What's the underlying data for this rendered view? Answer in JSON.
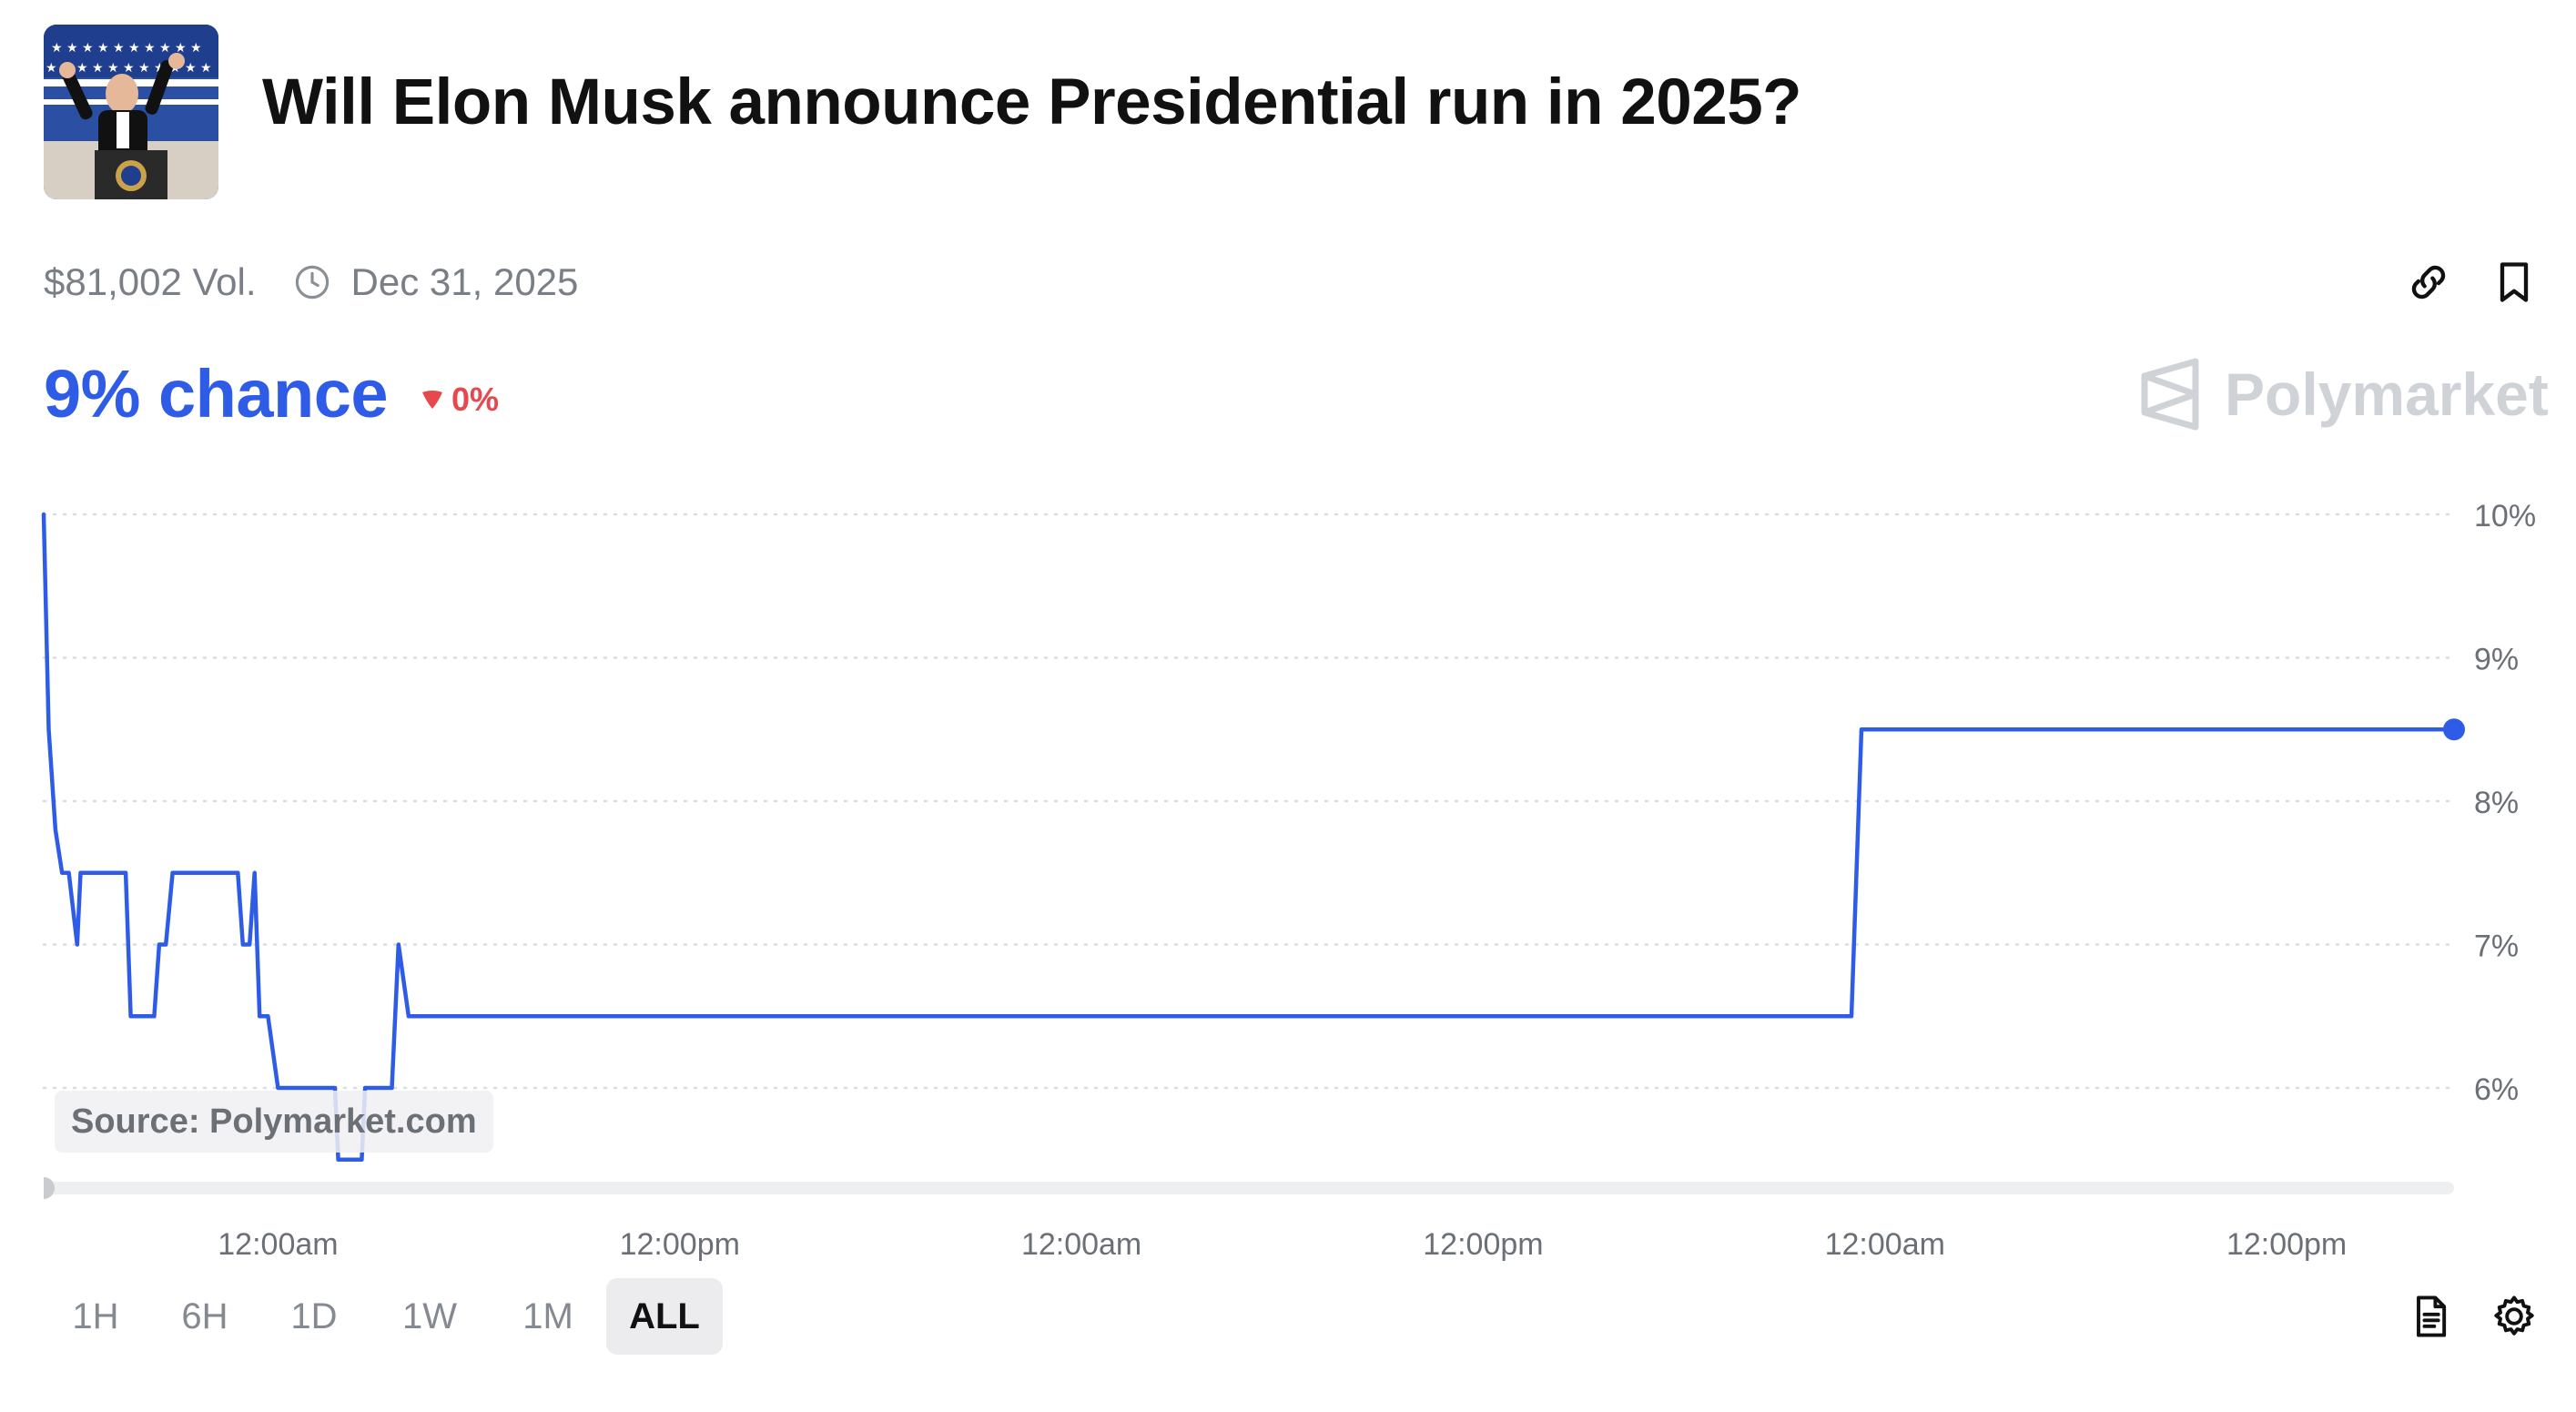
{
  "market": {
    "title": "Will Elon Musk announce Presidential run in 2025?",
    "volume": "$81,002 Vol.",
    "end_date": "Dec 31, 2025",
    "chance": "9% chance",
    "delta": "0%",
    "brand": "Polymarket",
    "source": "Source: Polymarket.com"
  },
  "timeframes": [
    {
      "label": "1H",
      "active": false
    },
    {
      "label": "6H",
      "active": false
    },
    {
      "label": "1D",
      "active": false
    },
    {
      "label": "1W",
      "active": false
    },
    {
      "label": "1M",
      "active": false
    },
    {
      "label": "ALL",
      "active": true
    }
  ],
  "colors": {
    "accent": "#2e5ce6",
    "down": "#e5484d",
    "muted": "#858a92",
    "brand_mark": "#cfd3d8"
  },
  "icons": [
    "link-icon",
    "bookmark-icon",
    "clock-icon",
    "down-triangle-icon",
    "document-icon",
    "gear-icon",
    "polymarket-logo-icon"
  ],
  "chart_data": {
    "type": "line",
    "title": "",
    "xlabel": "",
    "ylabel": "",
    "ylim": [
      5.5,
      10
    ],
    "y_ticks": [
      "10%",
      "9%",
      "8%",
      "7%",
      "6%"
    ],
    "y_tick_values": [
      10,
      9,
      8,
      7,
      6
    ],
    "x_tick_labels": [
      "12:00am",
      "12:00pm",
      "12:00am",
      "12:00pm",
      "12:00am",
      "12:00pm"
    ],
    "x_tick_hours": [
      12,
      24,
      36,
      48,
      60,
      72
    ],
    "x_range_hours": [
      5,
      77
    ],
    "grid": true,
    "series": [
      {
        "x": [
          5.0,
          5.15,
          5.35,
          5.55,
          5.75,
          6.0,
          6.1,
          6.25,
          6.35,
          7.45,
          7.6,
          8.3,
          8.45,
          8.65,
          8.85,
          9.45,
          9.7,
          10.8,
          10.95,
          11.15,
          11.3,
          11.45,
          11.7,
          12.0,
          12.1,
          13.7,
          13.8,
          14.5,
          14.6,
          15.4,
          15.6,
          15.9,
          16.1,
          59.0,
          59.3,
          77.0
        ],
        "y": [
          10.0,
          8.5,
          7.8,
          7.5,
          7.5,
          7.0,
          7.5,
          7.5,
          7.5,
          7.5,
          6.5,
          6.5,
          7.0,
          7.0,
          7.5,
          7.5,
          7.5,
          7.5,
          7.0,
          7.0,
          7.5,
          6.5,
          6.5,
          6.0,
          6.0,
          6.0,
          5.5,
          5.5,
          6.0,
          6.0,
          7.0,
          6.5,
          6.5,
          6.5,
          8.5,
          8.5
        ]
      }
    ]
  }
}
